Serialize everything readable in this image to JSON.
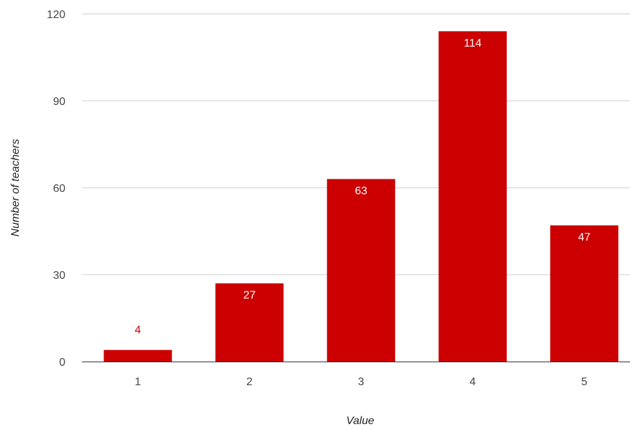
{
  "chart_data": {
    "type": "bar",
    "title": "",
    "xlabel": "Value",
    "ylabel": "Number of teachers",
    "categories": [
      "1",
      "2",
      "3",
      "4",
      "5"
    ],
    "values": [
      4,
      27,
      63,
      114,
      47
    ],
    "data_labels": [
      "4",
      "27",
      "63",
      "114",
      "47"
    ],
    "ylim": [
      0,
      120
    ],
    "yticks": [
      "0",
      "30",
      "60",
      "90",
      "120"
    ],
    "grid": true,
    "legend": "none",
    "bar_color": "#cc0000",
    "label_color_inside": "#ffffff",
    "label_color_outside": "#cc0000"
  }
}
